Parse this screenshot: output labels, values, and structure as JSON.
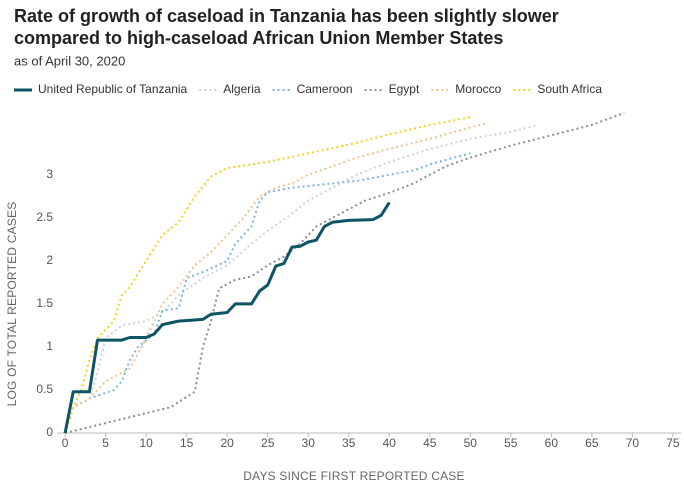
{
  "chart_data": {
    "type": "line",
    "title": [
      "Rate of growth of caseload in Tanzania has been slightly slower",
      "compared to high-caseload African Union Member States"
    ],
    "subtitle": "as of April 30, 2020",
    "xlabel": "DAYS SINCE FIRST REPORTED CASE",
    "ylabel": "LOG OF TOTAL REPORTED CASES",
    "xlim": [
      -1,
      76
    ],
    "ylim": [
      0,
      3.8
    ],
    "xticks": [
      0,
      5,
      10,
      15,
      20,
      25,
      30,
      35,
      40,
      45,
      50,
      55,
      60,
      65,
      70,
      75
    ],
    "yticks": [
      0,
      0.5,
      1,
      1.5,
      2,
      2.5,
      3
    ],
    "grid": false,
    "legend": "top",
    "series": [
      {
        "name": "United Republic of Tanzania",
        "color": "#0d5566",
        "style": "solid",
        "x": [
          0,
          1,
          3,
          4,
          7,
          8,
          10,
          11,
          12,
          14,
          17,
          18,
          20,
          21,
          23,
          24,
          25,
          26,
          27,
          28,
          29,
          30,
          31,
          32,
          33,
          35,
          38,
          39,
          40
        ],
        "values": [
          0,
          0.48,
          0.48,
          1.08,
          1.08,
          1.11,
          1.11,
          1.15,
          1.26,
          1.3,
          1.32,
          1.38,
          1.4,
          1.5,
          1.5,
          1.65,
          1.72,
          1.94,
          1.97,
          2.16,
          2.17,
          2.22,
          2.24,
          2.4,
          2.45,
          2.47,
          2.48,
          2.53,
          2.68
        ]
      },
      {
        "name": "Algeria",
        "color": "#cfd3d6",
        "style": "dotted",
        "x": [
          0,
          1,
          3,
          4,
          5,
          7,
          10,
          12,
          14,
          17,
          20,
          23,
          25,
          28,
          30,
          33,
          36,
          40,
          45,
          50,
          55,
          58
        ],
        "values": [
          0,
          0.3,
          0.4,
          0.7,
          1.1,
          1.25,
          1.3,
          1.4,
          1.6,
          1.8,
          1.95,
          2.2,
          2.35,
          2.55,
          2.7,
          2.85,
          3.0,
          3.15,
          3.3,
          3.42,
          3.5,
          3.57
        ]
      },
      {
        "name": "Cameroon",
        "color": "#7ab6e0",
        "style": "dotted",
        "x": [
          0,
          1,
          3,
          6,
          7,
          8,
          9,
          11,
          12,
          14,
          15,
          17,
          20,
          21,
          23,
          24,
          25,
          28,
          30,
          33,
          36,
          40,
          43,
          45,
          48,
          50
        ],
        "values": [
          0,
          0.3,
          0.4,
          0.5,
          0.6,
          0.85,
          1.0,
          1.15,
          1.42,
          1.45,
          1.8,
          1.87,
          2.0,
          2.2,
          2.4,
          2.7,
          2.8,
          2.85,
          2.87,
          2.9,
          2.93,
          3.0,
          3.05,
          3.12,
          3.2,
          3.25
        ]
      },
      {
        "name": "Egypt",
        "color": "#8c8f91",
        "style": "dotted",
        "x": [
          0,
          13,
          16,
          17,
          18,
          19,
          21,
          23,
          25,
          27,
          29,
          31,
          33,
          35,
          37,
          40,
          43,
          45,
          47,
          50,
          55,
          60,
          65,
          69
        ],
        "values": [
          0,
          0.3,
          0.48,
          1.0,
          1.3,
          1.68,
          1.78,
          1.82,
          1.95,
          2.05,
          2.2,
          2.4,
          2.5,
          2.6,
          2.7,
          2.79,
          2.9,
          3.0,
          3.1,
          3.2,
          3.34,
          3.46,
          3.58,
          3.72
        ]
      },
      {
        "name": "Morocco",
        "color": "#f2c28e",
        "style": "dotted",
        "x": [
          0,
          1,
          3,
          5,
          8,
          10,
          12,
          14,
          16,
          18,
          20,
          22,
          24,
          26,
          28,
          30,
          33,
          36,
          40,
          45,
          50,
          52
        ],
        "values": [
          0,
          0.3,
          0.4,
          0.6,
          0.75,
          1.1,
          1.5,
          1.7,
          1.95,
          2.1,
          2.3,
          2.5,
          2.75,
          2.85,
          2.9,
          3.0,
          3.1,
          3.2,
          3.3,
          3.42,
          3.55,
          3.6
        ]
      },
      {
        "name": "South Africa",
        "color": "#f5d21f",
        "style": "dotted",
        "x": [
          0,
          1,
          2,
          3,
          4,
          6,
          7,
          8,
          10,
          12,
          14,
          16,
          18,
          20,
          25,
          30,
          35,
          40,
          45,
          50
        ],
        "values": [
          0,
          0.3,
          0.5,
          0.85,
          1.1,
          1.3,
          1.6,
          1.7,
          2.0,
          2.3,
          2.45,
          2.75,
          2.98,
          3.08,
          3.15,
          3.25,
          3.35,
          3.47,
          3.58,
          3.67
        ]
      }
    ]
  }
}
